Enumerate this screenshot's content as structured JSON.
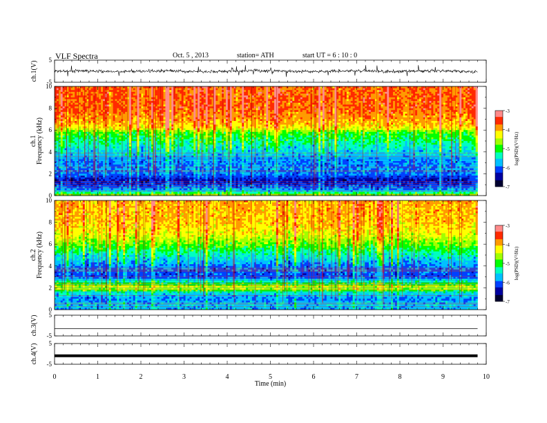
{
  "header": {
    "title": "VLF  Spectra",
    "date": "Oct. 5  , 2013",
    "station": "station= ATH",
    "start": "start  UT  =   6  : 10 : 0"
  },
  "colorbar": {
    "label": "log(PSD)(V²/Hz)",
    "ticks": [
      "-3",
      "-4",
      "-5",
      "-6",
      "-7"
    ],
    "colors": [
      "#ff8a8a",
      "#ff2a00",
      "#ff9a00",
      "#ffff00",
      "#a0ff00",
      "#00ff00",
      "#00ffc0",
      "#00c0ff",
      "#0040ff",
      "#0000a0",
      "#000030"
    ]
  },
  "chart_data": [
    {
      "type": "line",
      "panel": "ch1-waveform",
      "ylabel": "ch.1(V)",
      "yticks": [
        "5",
        "-5"
      ],
      "ylim": [
        -5,
        5
      ],
      "xlim": [
        0,
        10
      ],
      "x_end": 9.8,
      "color": "#000000",
      "series": [
        {
          "values_desc": "noisy waveform centered near 0 V, amplitude about ±1 V with spikes to about ±3 V"
        }
      ]
    },
    {
      "type": "heatmap",
      "panel": "ch1-spectrogram",
      "ylabel_top": "ch.1",
      "ylabel": "Frequency (kHz)",
      "yticks": [
        "0",
        "2",
        "4",
        "6",
        "8",
        "10"
      ],
      "ylim": [
        0,
        10
      ],
      "xlim": [
        0,
        10
      ],
      "x_end": 9.8,
      "zlim": [
        -7,
        -3
      ],
      "profile_khz": [
        0,
        0.5,
        1,
        1.5,
        2,
        3,
        4,
        5,
        5.8,
        6.2,
        7,
        8,
        10
      ],
      "profile_logpsd": [
        -4.6,
        -5.8,
        -6.2,
        -6.4,
        -5.9,
        -5.9,
        -5.6,
        -5.2,
        -4.9,
        -4.2,
        -3.9,
        -3.7,
        -3.7
      ]
    },
    {
      "type": "heatmap",
      "panel": "ch2-spectrogram",
      "ylabel_top": "ch.2",
      "ylabel": "Frequency (kHz)",
      "yticks": [
        "0",
        "2",
        "4",
        "6",
        "8",
        "10"
      ],
      "ylim": [
        0,
        10
      ],
      "xlim": [
        0,
        10
      ],
      "x_end": 9.8,
      "zlim": [
        -7,
        -3
      ],
      "profile_khz": [
        0,
        0.5,
        1,
        1.5,
        2,
        2.5,
        3,
        4,
        5,
        6,
        7,
        8,
        10
      ],
      "profile_logpsd": [
        -5.8,
        -5.7,
        -5.9,
        -5.6,
        -4.4,
        -5.2,
        -6.1,
        -5.9,
        -5.4,
        -4.8,
        -4.3,
        -4.1,
        -4.0
      ]
    },
    {
      "type": "line",
      "panel": "ch3-waveform",
      "ylabel": "ch.3(V)",
      "yticks": [
        "5",
        "-5"
      ],
      "ylim": [
        -5,
        5
      ],
      "xlim": [
        0,
        10
      ],
      "x_end": 9.8,
      "series": [
        {
          "values_desc": "flat line near -1.5 V"
        }
      ]
    },
    {
      "type": "line",
      "panel": "ch4-waveform",
      "ylabel": "ch.4(V)",
      "yticks": [
        "5",
        "-5"
      ],
      "ylim": [
        -5,
        5
      ],
      "xlim": [
        0,
        10
      ],
      "x_end": 9.8,
      "series": [
        {
          "values_desc": "thick flat line near -1 V"
        }
      ]
    }
  ],
  "xaxis": {
    "label": "Time  (min)",
    "ticks": [
      "0",
      "1",
      "2",
      "3",
      "4",
      "5",
      "6",
      "7",
      "8",
      "9",
      "10"
    ]
  }
}
